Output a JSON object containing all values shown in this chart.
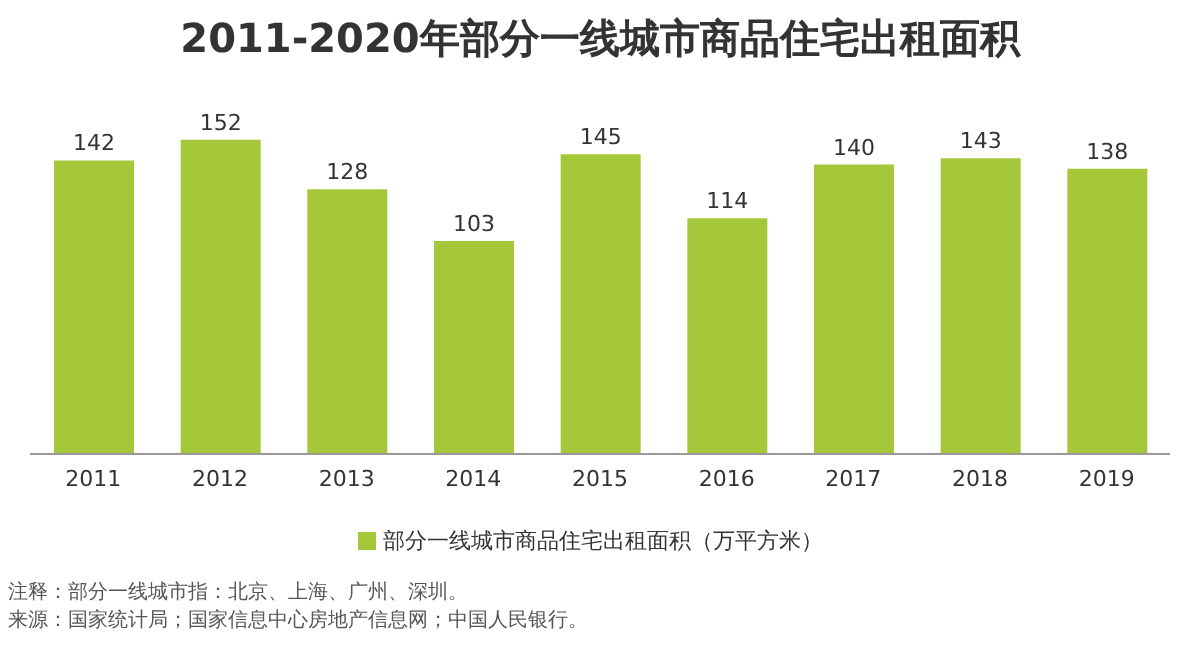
{
  "chart_data": {
    "type": "bar",
    "title": "2011-2020年部分一线城市商品住宅出租面积",
    "categories": [
      "2011",
      "2012",
      "2013",
      "2014",
      "2015",
      "2016",
      "2017",
      "2018",
      "2019"
    ],
    "series": [
      {
        "name": "部分一线城市商品住宅出租面积（万平方米）",
        "color": "#a5c83a",
        "values": [
          142,
          152,
          128,
          103,
          145,
          114,
          140,
          143,
          138
        ]
      }
    ],
    "data_labels": true,
    "legend": "bottom",
    "grid": false,
    "annotations": [
      "注释：部分一线城市指：北京、上海、广州、深圳。",
      "来源：国家统计局；国家信息中心房地产信息网；中国人民银行。"
    ]
  }
}
